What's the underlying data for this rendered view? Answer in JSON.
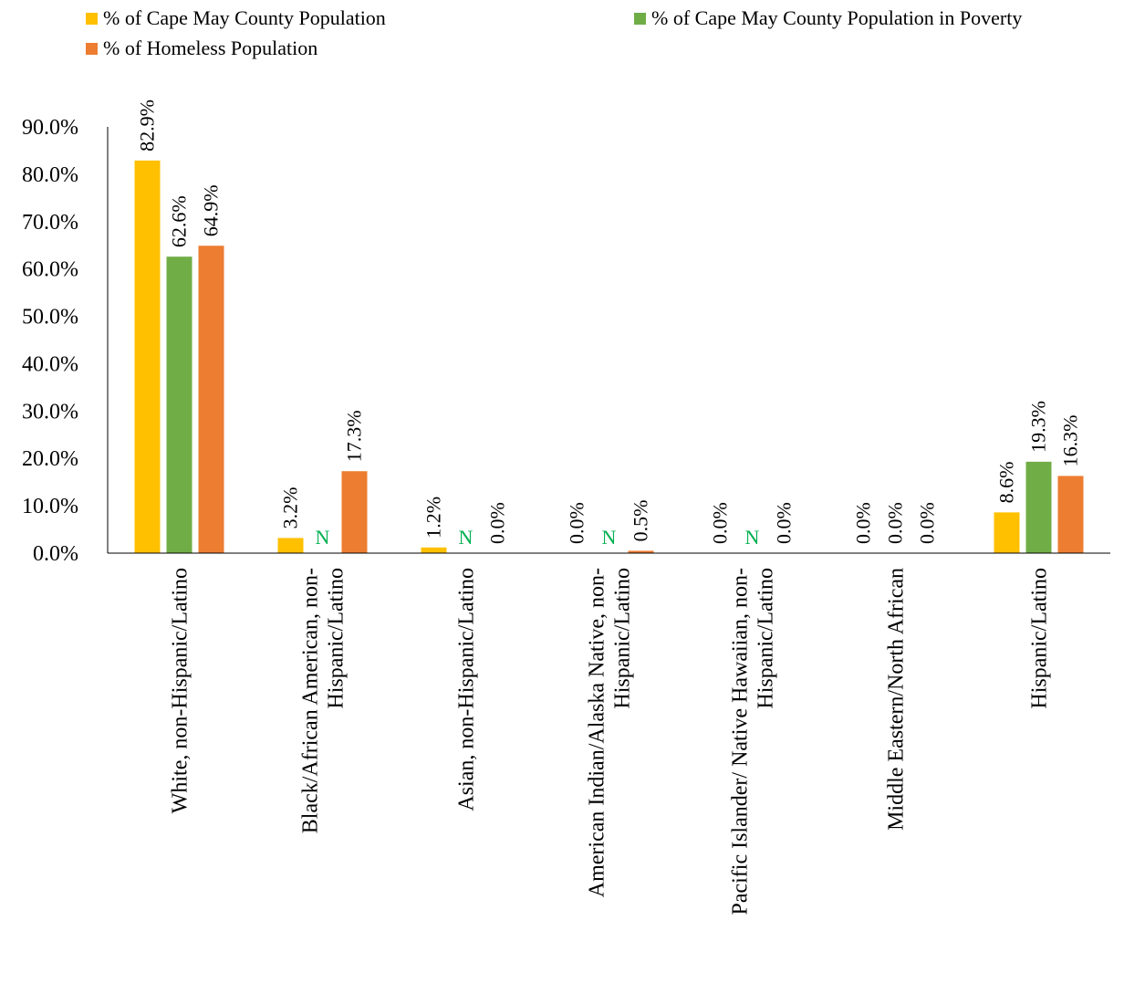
{
  "chart_data": {
    "type": "bar",
    "title": "",
    "xlabel": "",
    "ylabel": "",
    "ylim": [
      0,
      90
    ],
    "yticks": [
      "0.0%",
      "10.0%",
      "20.0%",
      "30.0%",
      "40.0%",
      "50.0%",
      "60.0%",
      "70.0%",
      "80.0%",
      "90.0%"
    ],
    "grid": false,
    "legend_position": "top",
    "categories": [
      "White, non-Hispanic/Latino",
      "Black/African American, non-Hispanic/Latino",
      "Asian, non-Hispanic/Latino",
      "American Indian/Alaska Native, non-Hispanic/Latino",
      "Pacific Islander/ Native Hawaiian, non-Hispanic/Latino",
      "Middle Eastern/North African",
      "Hispanic/Latino"
    ],
    "category_label_lines": [
      [
        "White, non-Hispanic/Latino"
      ],
      [
        "Black/African American, non-",
        "Hispanic/Latino"
      ],
      [
        "Asian, non-Hispanic/Latino"
      ],
      [
        "American Indian/Alaska Native, non-",
        "Hispanic/Latino"
      ],
      [
        "Pacific Islander/ Native Hawaiian, non-",
        "Hispanic/Latino"
      ],
      [
        "Middle Eastern/North African"
      ],
      [
        "Hispanic/Latino"
      ]
    ],
    "series": [
      {
        "name": "% of Cape May County Population",
        "color": "#FFC000",
        "values": [
          82.9,
          3.2,
          1.2,
          0.0,
          0.0,
          0.0,
          8.6
        ],
        "labels": [
          "82.9%",
          "3.2%",
          "1.2%",
          "0.0%",
          "0.0%",
          "0.0%",
          "8.6%"
        ]
      },
      {
        "name": "% of Cape May County Population in Poverty",
        "color": "#70AD47",
        "values": [
          62.6,
          null,
          null,
          null,
          null,
          0.0,
          19.3
        ],
        "labels": [
          "62.6%",
          "N",
          "N",
          "N",
          "N",
          "0.0%",
          "19.3%"
        ]
      },
      {
        "name": "% of Homeless Population",
        "color": "#ED7D31",
        "values": [
          64.9,
          17.3,
          0.0,
          0.5,
          0.0,
          0.0,
          16.3
        ],
        "labels": [
          "64.9%",
          "17.3%",
          "0.0%",
          "0.5%",
          "0.0%",
          "0.0%",
          "16.3%"
        ]
      }
    ],
    "na_label_color": "#00B050"
  }
}
